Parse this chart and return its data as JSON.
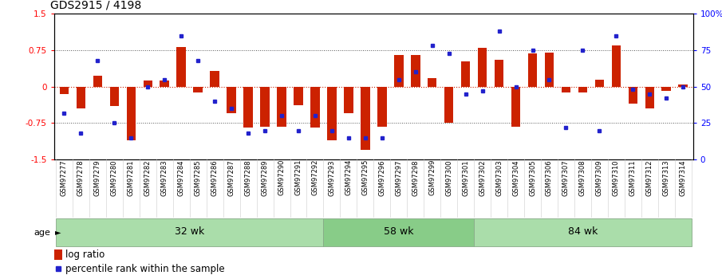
{
  "title": "GDS2915 / 4198",
  "samples": [
    "GSM97277",
    "GSM97278",
    "GSM97279",
    "GSM97280",
    "GSM97281",
    "GSM97282",
    "GSM97283",
    "GSM97284",
    "GSM97285",
    "GSM97286",
    "GSM97287",
    "GSM97288",
    "GSM97289",
    "GSM97290",
    "GSM97291",
    "GSM97292",
    "GSM97293",
    "GSM97294",
    "GSM97295",
    "GSM97296",
    "GSM97297",
    "GSM97298",
    "GSM97299",
    "GSM97300",
    "GSM97301",
    "GSM97302",
    "GSM97303",
    "GSM97304",
    "GSM97305",
    "GSM97306",
    "GSM97307",
    "GSM97308",
    "GSM97309",
    "GSM97310",
    "GSM97311",
    "GSM97312",
    "GSM97313",
    "GSM97314"
  ],
  "log_ratio": [
    -0.15,
    -0.45,
    0.22,
    -0.4,
    -1.1,
    0.12,
    0.12,
    0.82,
    -0.12,
    0.32,
    -0.55,
    -0.85,
    -0.82,
    -0.82,
    -0.38,
    -0.85,
    -1.1,
    -0.55,
    -1.3,
    -0.82,
    0.65,
    0.65,
    0.18,
    -0.75,
    0.52,
    0.8,
    0.55,
    -0.82,
    0.68,
    0.7,
    -0.12,
    -0.12,
    0.15,
    0.85,
    -0.35,
    -0.45,
    -0.08,
    0.05
  ],
  "percentile": [
    32,
    18,
    68,
    25,
    15,
    50,
    55,
    85,
    68,
    40,
    35,
    18,
    20,
    30,
    20,
    30,
    20,
    15,
    15,
    15,
    55,
    60,
    78,
    73,
    45,
    47,
    88,
    50,
    75,
    55,
    22,
    75,
    20,
    85,
    48,
    45,
    42,
    50
  ],
  "groups": [
    {
      "label": "32 wk",
      "start": 0,
      "end": 16
    },
    {
      "label": "58 wk",
      "start": 16,
      "end": 25
    },
    {
      "label": "84 wk",
      "start": 25,
      "end": 38
    }
  ],
  "ylim": [
    -1.5,
    1.5
  ],
  "yticks_left": [
    -1.5,
    -0.75,
    0,
    0.75,
    1.5
  ],
  "yticks_right": [
    0,
    25,
    50,
    75,
    100
  ],
  "bar_color": "#CC2200",
  "dot_color": "#2222CC",
  "hline_color": "#CC2200",
  "dotted_color": "#555555",
  "group_color_light": "#AADDAA",
  "group_color_mid": "#88CC88",
  "group_edge_color": "#88AA88"
}
